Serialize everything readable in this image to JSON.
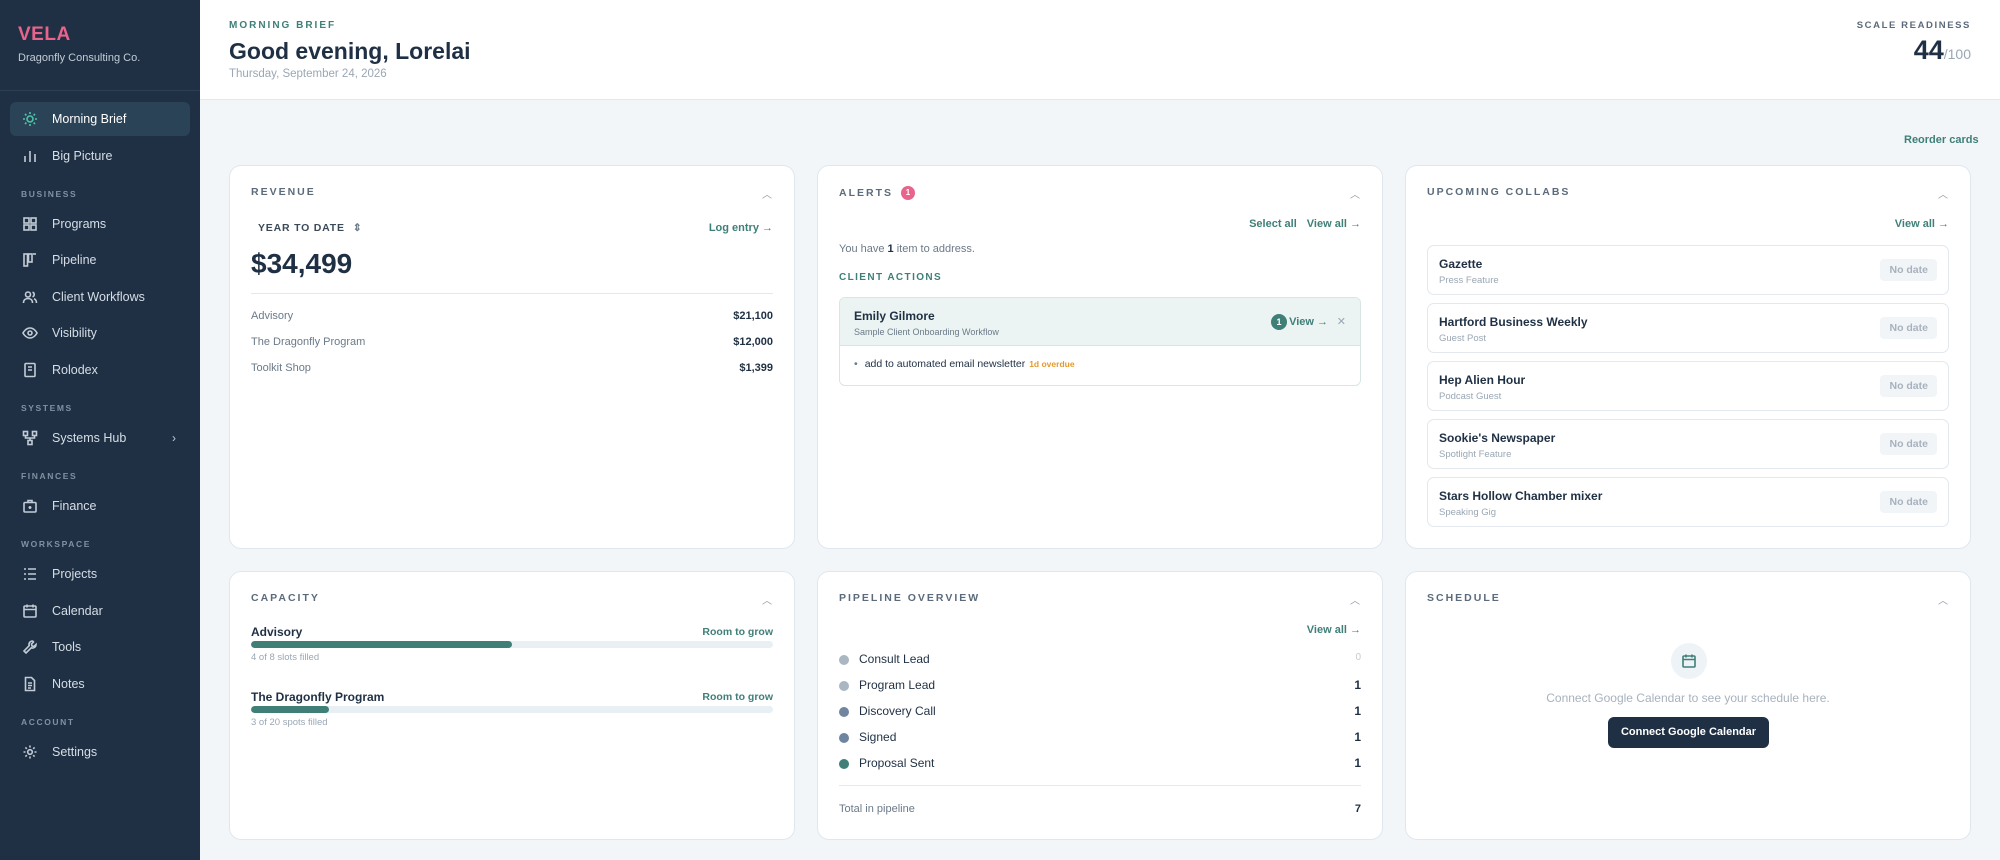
{
  "sidebar": {
    "logo": "VELA",
    "org": "Dragonfly Consulting Co.",
    "items": [
      {
        "label": "Morning Brief",
        "icon": "sun-icon"
      },
      {
        "label": "Big Picture",
        "icon": "bar-chart-icon"
      }
    ],
    "sections": [
      {
        "label": "BUSINESS",
        "items": [
          {
            "label": "Programs",
            "icon": "grid-icon"
          },
          {
            "label": "Pipeline",
            "icon": "kanban-icon"
          },
          {
            "label": "Client Workflows",
            "icon": "users-icon"
          },
          {
            "label": "Visibility",
            "icon": "eye-icon"
          },
          {
            "label": "Rolodex",
            "icon": "book-icon"
          }
        ]
      },
      {
        "label": "SYSTEMS",
        "items": [
          {
            "label": "Systems Hub",
            "icon": "nodes-icon"
          }
        ]
      },
      {
        "label": "FINANCES",
        "items": [
          {
            "label": "Finance",
            "icon": "briefcase-icon"
          }
        ]
      },
      {
        "label": "WORKSPACE",
        "items": [
          {
            "label": "Projects",
            "icon": "list-icon"
          },
          {
            "label": "Calendar",
            "icon": "calendar-icon"
          },
          {
            "label": "Tools",
            "icon": "wrench-icon"
          },
          {
            "label": "Notes",
            "icon": "document-icon"
          }
        ]
      },
      {
        "label": "ACCOUNT",
        "items": [
          {
            "label": "Settings",
            "icon": "gear-icon"
          }
        ]
      }
    ]
  },
  "header": {
    "eyebrow": "MORNING BRIEF",
    "title": "Good evening, Lorelai",
    "date": "Thursday, September 24, 2026",
    "readiness_label": "SCALE READINESS",
    "readiness_score": "44",
    "readiness_max": "/100"
  },
  "reorder_label": "Reorder cards",
  "revenue": {
    "title": "REVENUE",
    "period": "YEAR TO DATE",
    "log_entry": "Log entry →",
    "total": "$34,499",
    "rows": [
      {
        "label": "Advisory",
        "amount": "$21,100"
      },
      {
        "label": "The Dragonfly Program",
        "amount": "$12,000"
      },
      {
        "label": "Toolkit Shop",
        "amount": "$1,399"
      }
    ]
  },
  "alerts": {
    "title": "ALERTS",
    "badge": "1",
    "select_all": "Select all",
    "view_all": "View all →",
    "msg_prefix": "You have ",
    "msg_count": "1",
    "msg_suffix": " item to address.",
    "section": "CLIENT ACTIONS",
    "client": {
      "name": "Emily Gilmore",
      "workflow": "Sample Client Onboarding Workflow",
      "count": "1",
      "view": "View →",
      "task": "add to automated email newsletter",
      "overdue": "1d overdue"
    }
  },
  "collabs": {
    "title": "UPCOMING COLLABS",
    "view_all": "View all →",
    "items": [
      {
        "name": "Gazette",
        "type": "Press Feature",
        "date": "No date"
      },
      {
        "name": "Hartford Business Weekly",
        "type": "Guest Post",
        "date": "No date"
      },
      {
        "name": "Hep Alien Hour",
        "type": "Podcast Guest",
        "date": "No date"
      },
      {
        "name": "Sookie's Newspaper",
        "type": "Spotlight Feature",
        "date": "No date"
      },
      {
        "name": "Stars Hollow Chamber mixer",
        "type": "Speaking Gig",
        "date": "No date"
      }
    ]
  },
  "capacity": {
    "title": "CAPACITY",
    "items": [
      {
        "name": "Advisory",
        "status": "Room to grow",
        "filled": "4 of 8 slots filled",
        "fraction": 0.5
      },
      {
        "name": "The Dragonfly Program",
        "status": "Room to grow",
        "filled": "3 of 20 spots filled",
        "fraction": 0.15
      }
    ]
  },
  "pipeline": {
    "title": "PIPELINE OVERVIEW",
    "view_all": "View all →",
    "stages": [
      {
        "name": "Consult Lead",
        "value": "0",
        "color": "#aab6c2"
      },
      {
        "name": "Program Lead",
        "value": "1",
        "color": "#aab6c2"
      },
      {
        "name": "Discovery Call",
        "value": "1",
        "color": "#6f85a0"
      },
      {
        "name": "Signed",
        "value": "1",
        "color": "#6f85a0"
      },
      {
        "name": "Proposal Sent",
        "value": "1",
        "color": "#3f7f78"
      }
    ],
    "total_label": "Total in pipeline",
    "total": "7"
  },
  "schedule": {
    "title": "SCHEDULE",
    "message": "Connect Google Calendar to see your schedule here.",
    "button": "Connect Google Calendar"
  },
  "colors": {
    "accent": "#3f7f78",
    "brand": "#e8648c",
    "sidebar": "#1f3044",
    "warning": "#e39a2b"
  }
}
